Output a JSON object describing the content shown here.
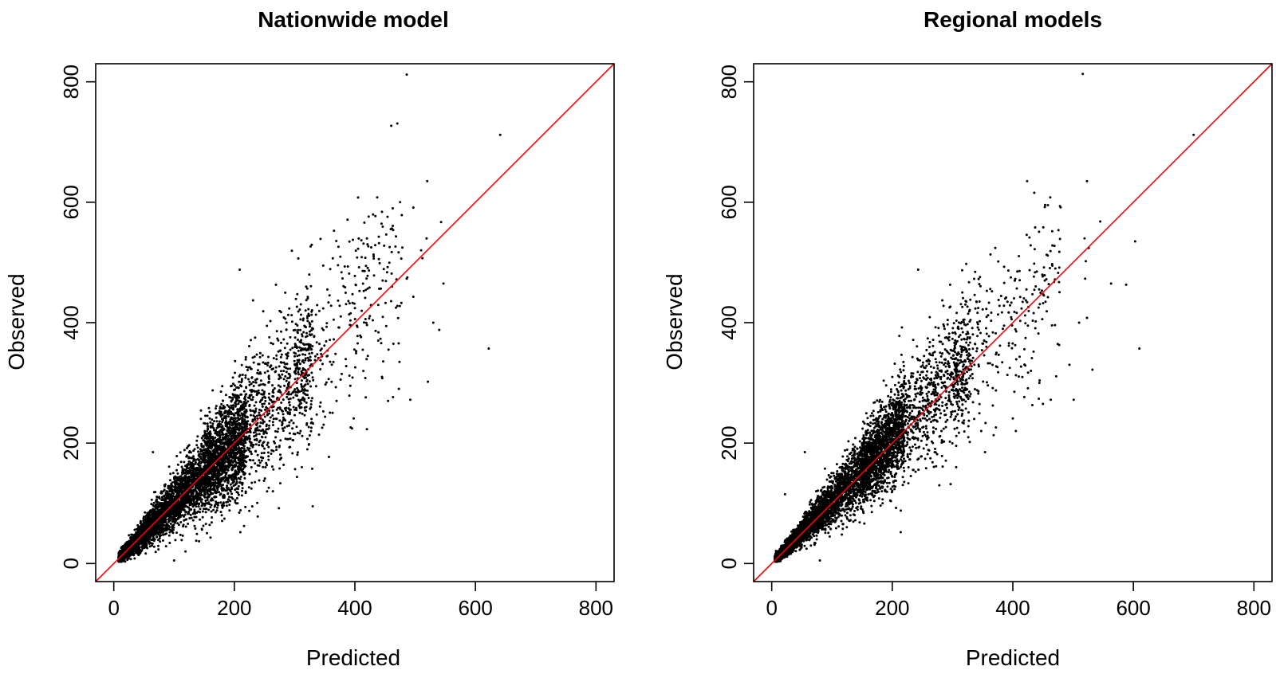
{
  "chart_data": [
    {
      "type": "scatter",
      "title": "Nationwide model",
      "xlabel": "Predicted",
      "ylabel": "Observed",
      "xlim": [
        -30,
        830
      ],
      "ylim": [
        -30,
        830
      ],
      "xticks": [
        "0",
        "200",
        "400",
        "600",
        "800"
      ],
      "yticks": [
        "0",
        "200",
        "400",
        "600",
        "800"
      ],
      "reference_line": {
        "slope": 1,
        "intercept": 0,
        "color": "#ff0000"
      },
      "point_color": "#000000",
      "series": [
        {
          "points": [
            [
              486,
              812
            ],
            [
              641,
              712
            ],
            [
              520,
              635
            ],
            [
              437,
              608
            ],
            [
              497,
              591
            ],
            [
              434,
              577
            ],
            [
              543,
              567
            ],
            [
              420,
              540
            ],
            [
              519,
              540
            ],
            [
              510,
              520
            ],
            [
              512,
              507
            ],
            [
              487,
              475
            ],
            [
              547,
              465
            ],
            [
              446,
              470
            ],
            [
              209,
              488
            ],
            [
              269,
              463
            ],
            [
              231,
              437
            ],
            [
              486,
              473
            ],
            [
              497,
              443
            ],
            [
              530,
              400
            ],
            [
              540,
              388
            ],
            [
              622,
              357
            ],
            [
              521,
              302
            ],
            [
              473,
              290
            ],
            [
              492,
              272
            ],
            [
              455,
              270
            ],
            [
              445,
              310
            ],
            [
              418,
              276
            ],
            [
              398,
              241
            ],
            [
              393,
              226
            ],
            [
              420,
              223
            ],
            [
              357,
              177
            ],
            [
              328,
              240
            ],
            [
              312,
              160
            ],
            [
              264,
              120
            ],
            [
              210,
              52
            ],
            [
              100,
              5
            ],
            [
              119,
              20
            ],
            [
              65,
              185
            ],
            [
              330,
              95
            ]
          ],
          "clusters": [
            {
              "n": 4200,
              "x_range": [
                8,
                220
              ],
              "slope": 1.0,
              "spread": 0.22
            },
            {
              "n": 1300,
              "x_range": [
                150,
                330
              ],
              "slope": 1.02,
              "spread": 0.22
            },
            {
              "n": 320,
              "x_range": [
                300,
                480
              ],
              "slope": 1.05,
              "spread": 0.2
            }
          ]
        }
      ]
    },
    {
      "type": "scatter",
      "title": "Regional models",
      "xlabel": "Predicted",
      "ylabel": "Observed",
      "xlim": [
        -30,
        830
      ],
      "ylim": [
        -30,
        830
      ],
      "xticks": [
        "0",
        "200",
        "400",
        "600",
        "800"
      ],
      "yticks": [
        "0",
        "200",
        "400",
        "600",
        "800"
      ],
      "reference_line": {
        "slope": 1,
        "intercept": 0,
        "color": "#ff0000"
      },
      "point_color": "#000000",
      "series": [
        {
          "points": [
            [
              516,
              813
            ],
            [
              700,
              712
            ],
            [
              523,
              635
            ],
            [
              462,
              608
            ],
            [
              453,
              592
            ],
            [
              545,
              568
            ],
            [
              603,
              535
            ],
            [
              423,
              546
            ],
            [
              519,
              540
            ],
            [
              526,
              524
            ],
            [
              521,
              502
            ],
            [
              563,
              465
            ],
            [
              588,
              463
            ],
            [
              453,
              470
            ],
            [
              243,
              488
            ],
            [
              296,
              463
            ],
            [
              283,
              437
            ],
            [
              520,
              473
            ],
            [
              523,
              408
            ],
            [
              510,
              400
            ],
            [
              610,
              357
            ],
            [
              532,
              322
            ],
            [
              501,
              272
            ],
            [
              450,
              265
            ],
            [
              463,
              272
            ],
            [
              444,
              300
            ],
            [
              425,
              291
            ],
            [
              400,
              241
            ],
            [
              372,
              226
            ],
            [
              405,
              220
            ],
            [
              354,
              185
            ],
            [
              336,
              240
            ],
            [
              306,
              160
            ],
            [
              278,
              130
            ],
            [
              214,
              52
            ],
            [
              80,
              5
            ],
            [
              22,
              115
            ],
            [
              55,
              185
            ],
            [
              430,
              320
            ],
            [
              494,
              330
            ]
          ],
          "clusters": [
            {
              "n": 4200,
              "x_range": [
                5,
                220
              ],
              "slope": 1.03,
              "spread": 0.18
            },
            {
              "n": 1300,
              "x_range": [
                150,
                330
              ],
              "slope": 1.04,
              "spread": 0.18
            },
            {
              "n": 320,
              "x_range": [
                300,
                480
              ],
              "slope": 1.03,
              "spread": 0.17
            }
          ]
        }
      ]
    }
  ]
}
